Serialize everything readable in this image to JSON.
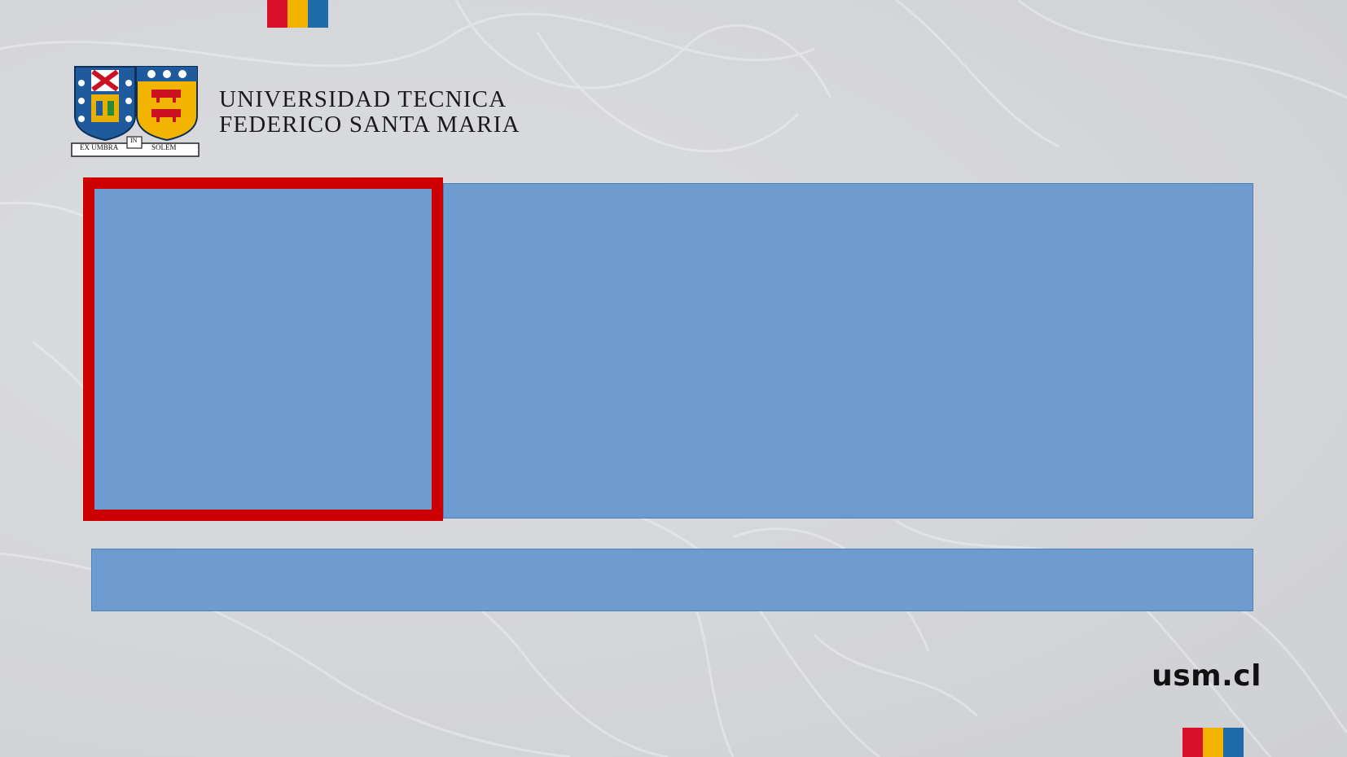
{
  "university": {
    "line1": "UNIVERSIDAD TECNICA",
    "line2": "FEDERICO SANTA MARIA",
    "motto_left": "EX UMBRA",
    "motto_mid": "IN",
    "motto_right": "SOLEM"
  },
  "footer": {
    "website": "usm.cl"
  },
  "colors": {
    "flag": [
      "#d8102a",
      "#f3b400",
      "#1f6aa8"
    ],
    "placeholder_fill": "#6f9cd0",
    "highlight_border": "#cc0000"
  }
}
